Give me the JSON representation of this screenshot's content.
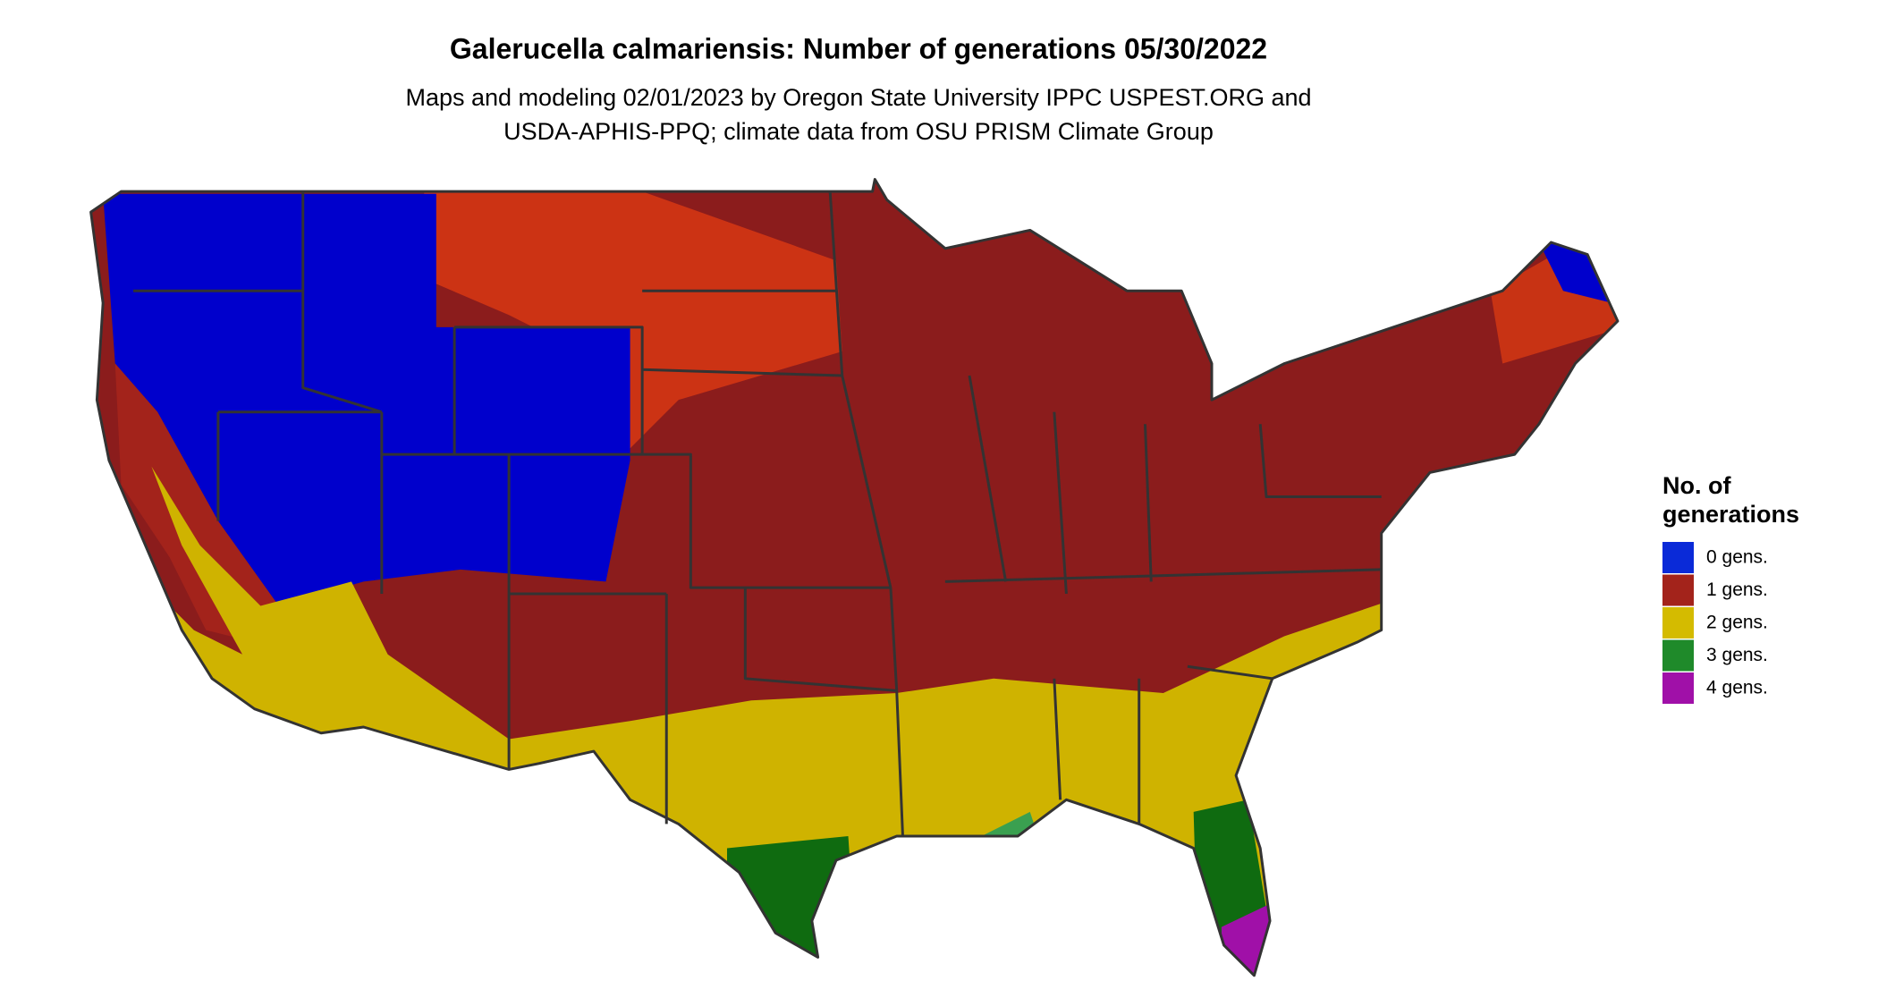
{
  "title": "Galerucella calmariensis: Number of generations 05/30/2022",
  "subtitle": [
    "Maps and modeling 02/01/2023 by Oregon State University IPPC USPEST.ORG and",
    "USDA-APHIS-PPQ; climate data from OSU PRISM Climate Group"
  ],
  "legend": {
    "title": [
      "No. of",
      "generations"
    ],
    "items": [
      {
        "label": "0 gens.",
        "color": "#0a2ad8"
      },
      {
        "label": "1 gens.",
        "color": "#a3231b"
      },
      {
        "label": "2 gens.",
        "color": "#d4bb00"
      },
      {
        "label": "3 gens.",
        "color": "#1f8a2a"
      },
      {
        "label": "4 gens.",
        "color": "#a010a8"
      }
    ]
  }
}
